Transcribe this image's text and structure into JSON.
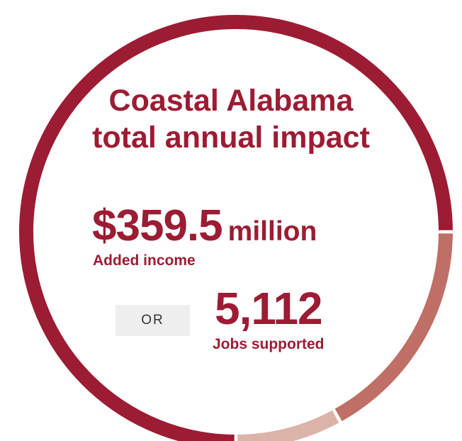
{
  "title": "Coastal Alabama total annual impact",
  "income": {
    "value": "$359.5",
    "unit": "million",
    "label": "Added income"
  },
  "or_label": "OR",
  "jobs": {
    "value": "5,112",
    "label": "Jobs supported"
  },
  "chart_data": {
    "type": "pie",
    "style": "donut",
    "slices": [
      {
        "value": 75,
        "color": "#9c1c33"
      },
      {
        "value": 17,
        "color": "#bf6f66"
      },
      {
        "value": 8,
        "color": "#dcb3a8"
      }
    ]
  }
}
